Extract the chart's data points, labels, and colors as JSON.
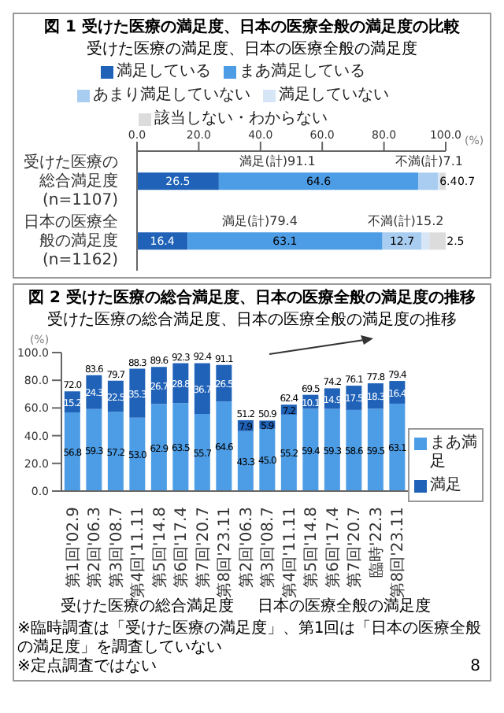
{
  "chart_data": [
    {
      "type": "bar",
      "orientation": "horizontal",
      "stacked": true,
      "title": "図 1 受けた医療の満足度、日本の医療全般の満足度の比較",
      "subtitle": "受けた医療の満足度、日本の医療全般の満足度",
      "xlabel": "(%)",
      "legend": "top",
      "categories": [
        "受けた医療の総合満足度(n=1107)",
        "日本の医療全般の満足度(n=1162)"
      ],
      "xlim": [
        0,
        100
      ],
      "xticks": [
        {
          "value": 0,
          "label": "0.0"
        },
        {
          "value": 20,
          "label": "20.0"
        },
        {
          "value": 40,
          "label": "40.0"
        },
        {
          "value": 60,
          "label": "60.0"
        },
        {
          "value": 80,
          "label": "80.0"
        },
        {
          "value": 100,
          "label": "100.0"
        }
      ],
      "series": [
        {
          "name": "満足している",
          "color": "#1f62b8",
          "values": [
            26.5,
            16.4
          ],
          "value_labels": [
            "26.5",
            "16.4"
          ]
        },
        {
          "name": "まあ満足している",
          "color": "#4d9de6",
          "values": [
            64.6,
            63.1
          ],
          "value_labels": [
            "64.6",
            "63.1"
          ]
        },
        {
          "name": "あまり満足していない",
          "color": "#a9cdf0",
          "values": [
            6.4,
            12.7
          ],
          "value_labels": [
            "6.4",
            "12.7"
          ]
        },
        {
          "name": "満足していない",
          "color": "#d6e6f6",
          "values": [
            0.7,
            2.5
          ],
          "value_labels": [
            "0.7",
            "2.5"
          ]
        },
        {
          "name": "該当しない・わからない",
          "color": "#dcdcdc",
          "values": [
            1.8,
            5.3
          ],
          "value_labels": [
            null,
            null
          ]
        }
      ],
      "annotations": [
        "満足(計)91.1",
        "不満(計)7.1",
        "満足(計)79.4",
        "不満(計)15.2"
      ]
    },
    {
      "type": "bar",
      "stacked": true,
      "title": "図 2 受けた医療の総合満足度、日本の医療全般の満足度の推移",
      "subtitle": "受けた医療の総合満足度、日本の医療全般の満足度の推移",
      "ylabel": "(%)",
      "legend": "right",
      "categories": [
        "第1回'02.9",
        "第2回'06.3",
        "第3回'08.7",
        "第4回'11.11",
        "第5回'14.8",
        "第6回'17.4",
        "第7回'20.7",
        "第8回'23.11",
        "第2回'06.3",
        "第3回'08.7",
        "第4回'11.11",
        "第5回'14.8",
        "第6回'17.4",
        "第7回'20.7",
        "臨時'22.3",
        "第8回'23.11"
      ],
      "ylim": [
        0,
        100
      ],
      "yticks": [
        {
          "value": 0,
          "label": "0.0"
        },
        {
          "value": 20,
          "label": "20.0"
        },
        {
          "value": 40,
          "label": "40.0"
        },
        {
          "value": 60,
          "label": "60.0"
        },
        {
          "value": 80,
          "label": "80.0"
        },
        {
          "value": 100,
          "label": "100.0"
        }
      ],
      "series": [
        {
          "name": "まあ満足",
          "color": "#4d9de6",
          "values": [
            56.8,
            59.3,
            57.2,
            53.0,
            62.9,
            63.5,
            55.7,
            64.6,
            43.3,
            45.0,
            55.2,
            59.4,
            59.3,
            58.6,
            59.5,
            63.1
          ],
          "value_labels": [
            "56.8",
            "59.3",
            "57.2",
            "53.0",
            "62.9",
            "63.5",
            "55.7",
            "64.6",
            "43.3",
            "45.0",
            "55.2",
            "59.4",
            "59.3",
            "58.6",
            "59.5",
            "63.1"
          ]
        },
        {
          "name": "満足",
          "color": "#1f62b8",
          "values": [
            15.2,
            24.3,
            22.5,
            35.3,
            26.7,
            28.8,
            36.7,
            26.5,
            7.9,
            5.9,
            7.2,
            10.1,
            14.9,
            17.5,
            18.3,
            16.4
          ],
          "value_labels": [
            "15.2",
            "24.3",
            "22.5",
            "35.3",
            "26.7",
            "28.8",
            "36.7",
            "26.5",
            "7.9",
            "5.9",
            "7.2",
            "10.1",
            "14.9",
            "17.5",
            "18.3",
            "16.4"
          ]
        }
      ],
      "totals": [
        "72.0",
        "83.6",
        "79.7",
        "88.3",
        "89.6",
        "92.3",
        "92.4",
        "91.1",
        "51.2",
        "50.9",
        "62.4",
        "69.5",
        "74.2",
        "76.1",
        "77.8",
        "79.4"
      ],
      "annotations": [
        "受けた医療の総合満足度",
        "日本の医療全般の満足度",
        "※臨時調査は「受けた医療の満足度」、第1回は「日本の医療全般の満足度」を調査していない",
        "※定点調査ではない",
        "8"
      ]
    }
  ]
}
